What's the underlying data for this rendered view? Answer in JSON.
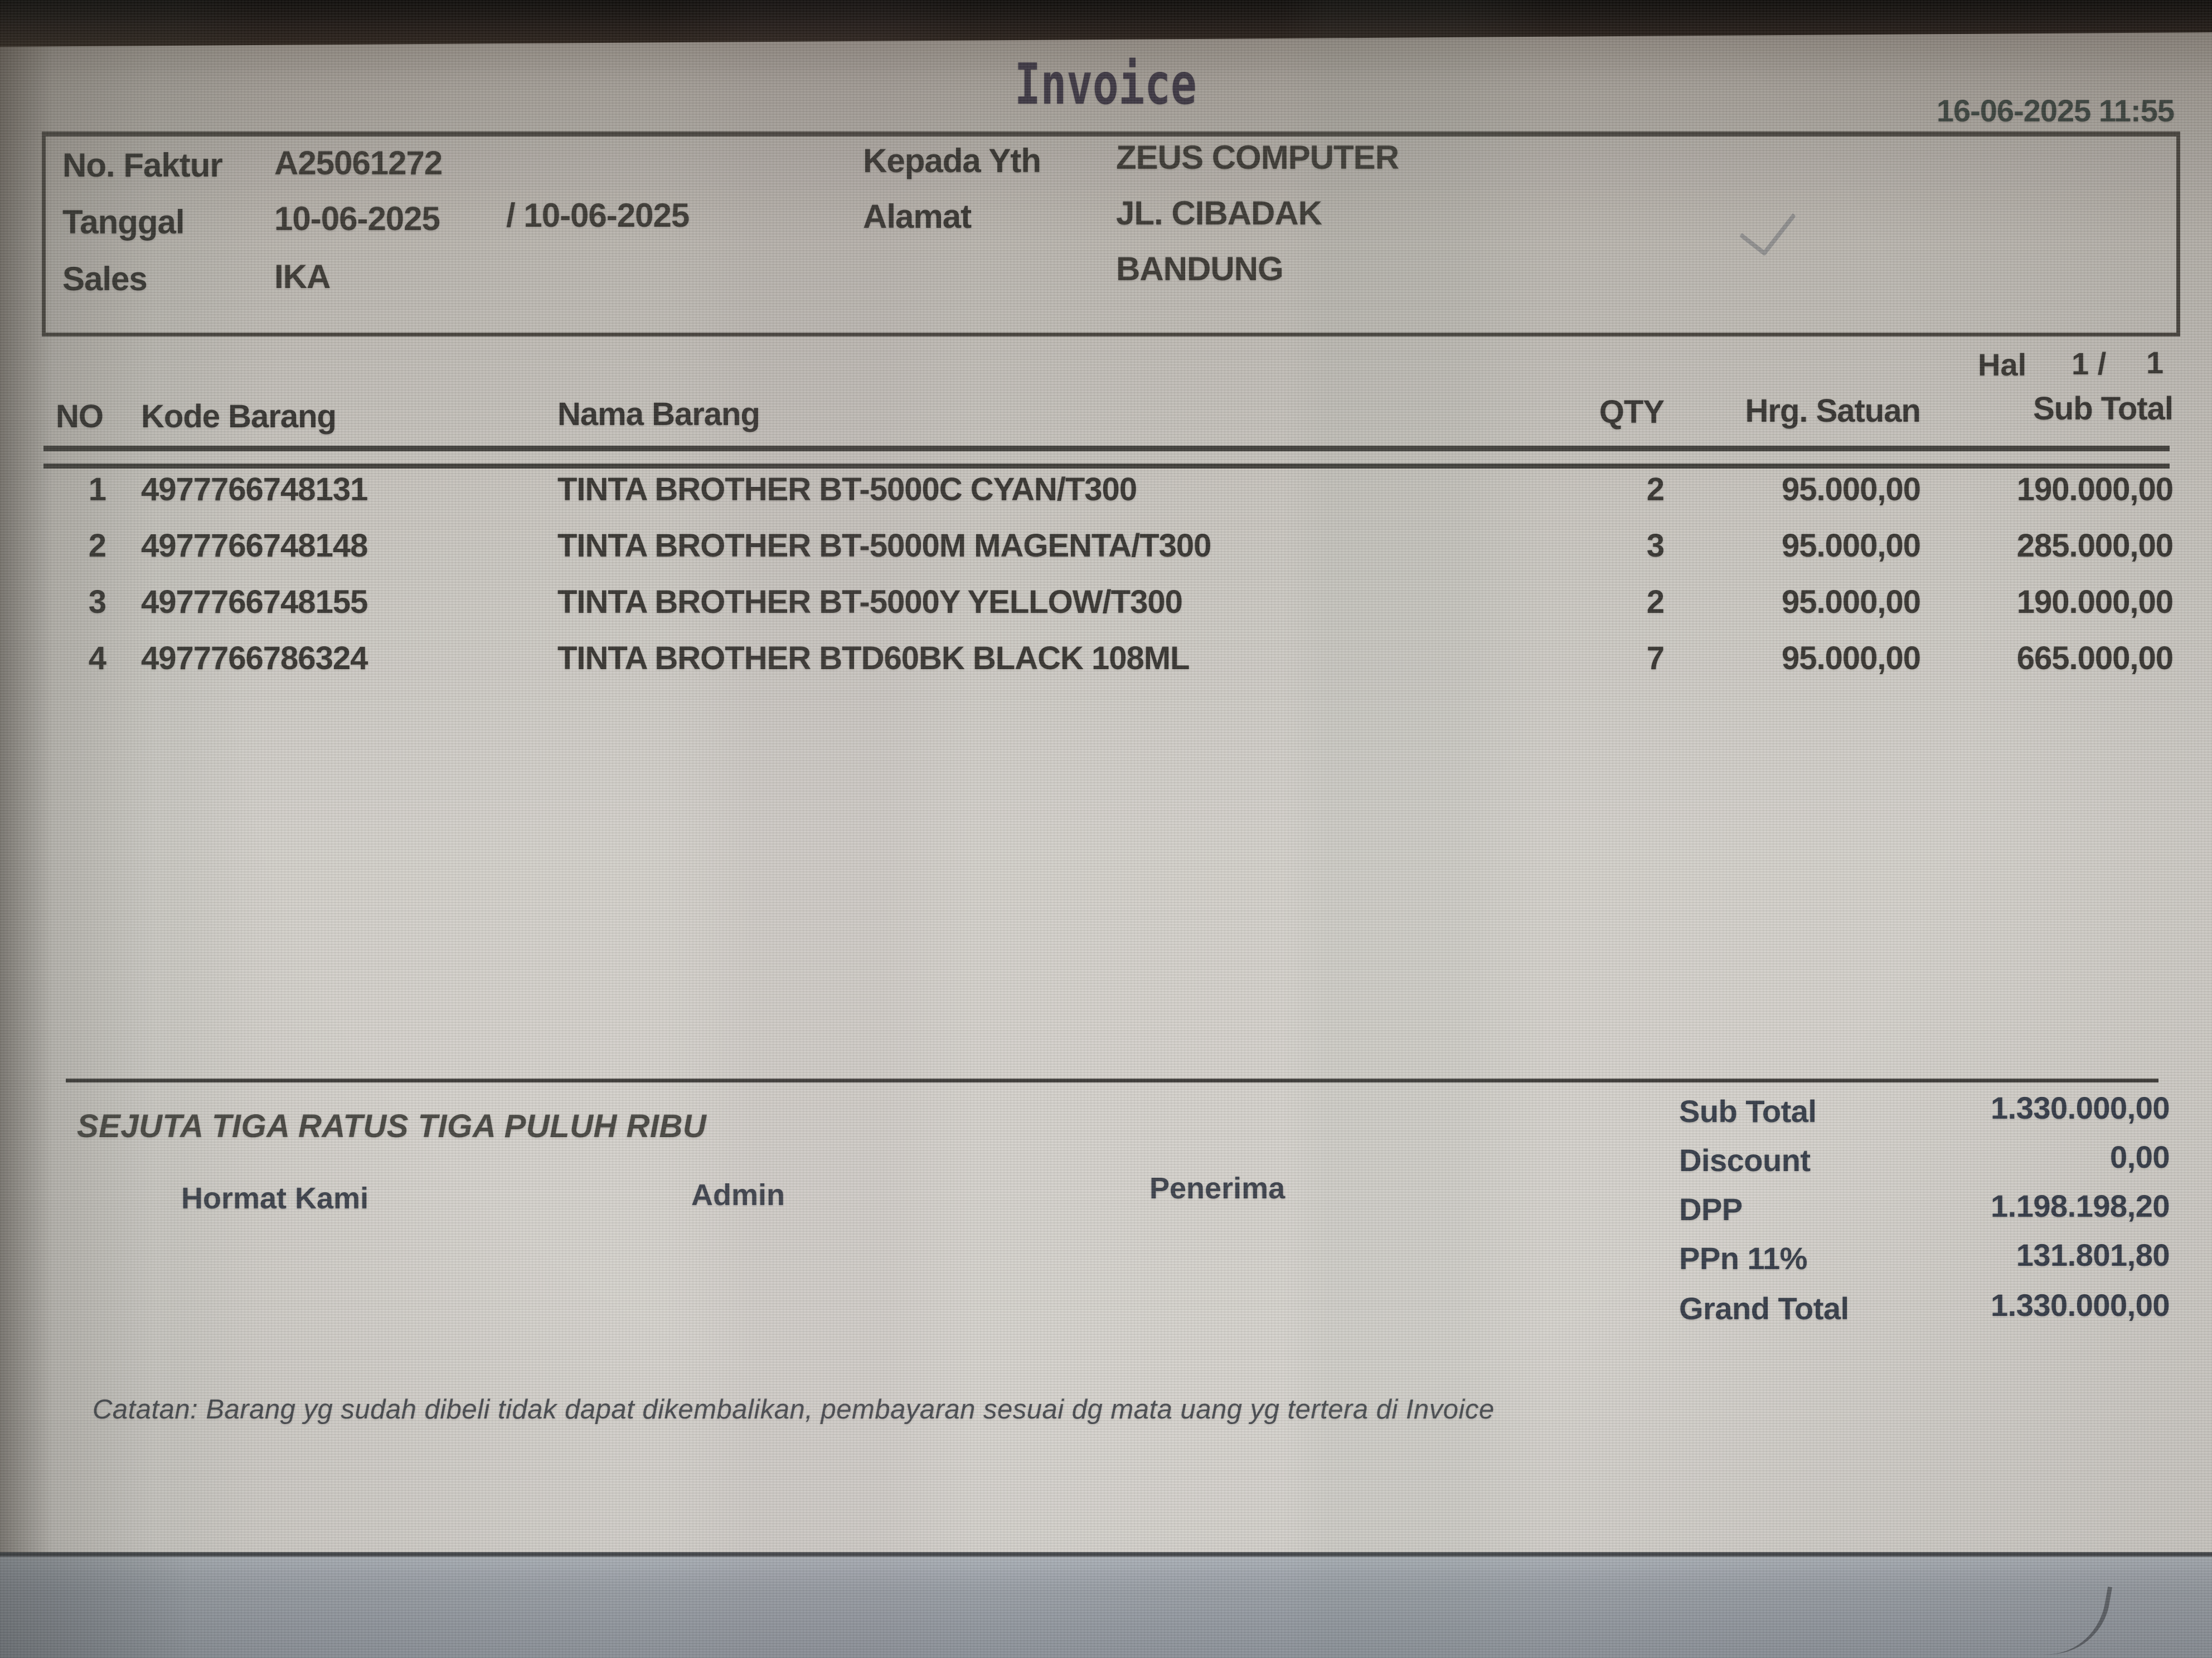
{
  "invoice": {
    "title": "Invoice",
    "printed_datetime": "16-06-2025 11:55",
    "header_box": {
      "no_faktur": {
        "label": "No. Faktur",
        "value": "A25061272"
      },
      "tanggal": {
        "label": "Tanggal",
        "value": "10-06-2025",
        "value2": "/ 10-06-2025"
      },
      "sales": {
        "label": "Sales",
        "value": "IKA"
      },
      "kepada": {
        "label": "Kepada Yth",
        "value": "ZEUS COMPUTER"
      },
      "alamat": {
        "label": "Alamat",
        "value": "JL. CIBADAK",
        "value2": "BANDUNG"
      }
    },
    "page_indicator": {
      "label": "Hal",
      "value": "1 /",
      "value2": "1"
    },
    "table": {
      "headers": {
        "no": "NO",
        "kode": "Kode Barang",
        "nama": "Nama Barang",
        "qty": "QTY",
        "hrg": "Hrg. Satuan",
        "subtotal": "Sub Total"
      },
      "rows": [
        {
          "no": "1",
          "kode": "4977766748131",
          "nama": "TINTA BROTHER BT-5000C CYAN/T300",
          "qty": "2",
          "hrg": "95.000,00",
          "subtotal": "190.000,00"
        },
        {
          "no": "2",
          "kode": "4977766748148",
          "nama": "TINTA BROTHER BT-5000M MAGENTA/T300",
          "qty": "3",
          "hrg": "95.000,00",
          "subtotal": "285.000,00"
        },
        {
          "no": "3",
          "kode": "4977766748155",
          "nama": "TINTA BROTHER BT-5000Y YELLOW/T300",
          "qty": "2",
          "hrg": "95.000,00",
          "subtotal": "190.000,00"
        },
        {
          "no": "4",
          "kode": "4977766786324",
          "nama": "TINTA BROTHER BTD60BK BLACK 108ML",
          "qty": "7",
          "hrg": "95.000,00",
          "subtotal": "665.000,00"
        }
      ]
    },
    "amount_in_words": "SEJUTA TIGA RATUS TIGA PULUH RIBU",
    "signatures": {
      "hormat_kami": "Hormat Kami",
      "admin": "Admin",
      "penerima": "Penerima"
    },
    "totals": {
      "sub_total": {
        "label": "Sub Total",
        "value": "1.330.000,00"
      },
      "discount": {
        "label": "Discount",
        "value": "0,00"
      },
      "dpp": {
        "label": "DPP",
        "value": "1.198.198,20"
      },
      "ppn": {
        "label": "PPn 11%",
        "value": "131.801,80"
      },
      "grand_total": {
        "label": "Grand Total",
        "value": "1.330.000,00"
      }
    },
    "note": "Catatan: Barang yg sudah dibeli tidak dapat dikembalikan, pembayaran sesuai dg mata uang yg tertera di Invoice",
    "colors": {
      "paper": "#d2cfc9",
      "ink": "#2e2d2b",
      "totals_ink": "#333a46"
    }
  }
}
